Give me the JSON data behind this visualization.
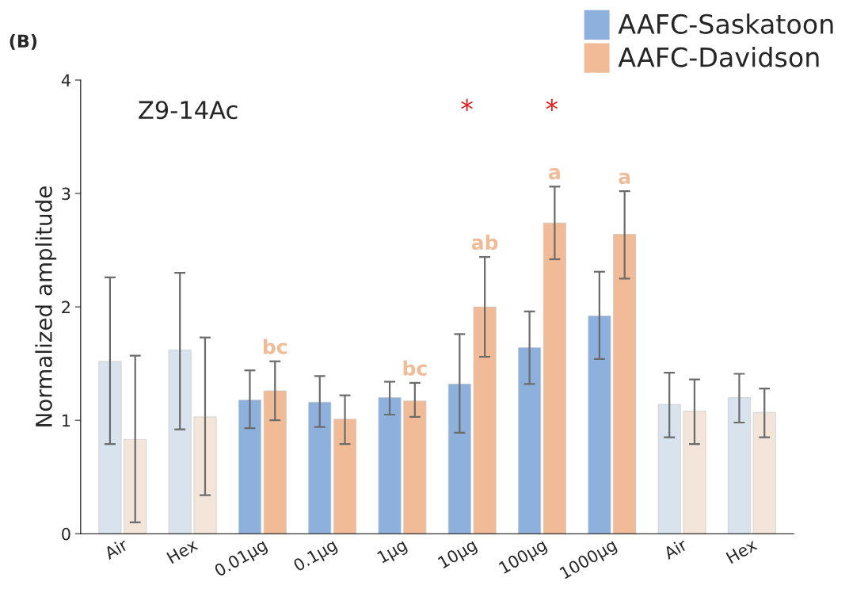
{
  "chart_data": {
    "type": "bar",
    "title": "Z9-14Ac",
    "ylabel": "Normalized amplitude",
    "categories": [
      "Air",
      "Hex",
      "0.01µg",
      "0.1µg",
      "1µg",
      "10µg",
      "100µg",
      "1000µg",
      "Air",
      "Hex"
    ],
    "series": [
      {
        "name": "AAFC-Saskatoon",
        "color": "#8db0dc",
        "colors": [
          "#d9e3ee",
          "#d9e3ee",
          "#8db0dc",
          "#8db0dc",
          "#8db0dc",
          "#8db0dc",
          "#8db0dc",
          "#8db0dc",
          "#d9e3ee",
          "#d9e3ee"
        ],
        "values": [
          1.52,
          1.62,
          1.18,
          1.16,
          1.2,
          1.32,
          1.64,
          1.92,
          1.14,
          1.2
        ],
        "errors": [
          [
            0.79,
            2.26
          ],
          [
            0.92,
            2.3
          ],
          [
            0.93,
            1.44
          ],
          [
            0.94,
            1.39
          ],
          [
            1.05,
            1.34
          ],
          [
            0.89,
            1.76
          ],
          [
            1.32,
            1.96
          ],
          [
            1.54,
            2.31
          ],
          [
            0.85,
            1.42
          ],
          [
            0.98,
            1.41
          ]
        ]
      },
      {
        "name": "AAFC-Davidson",
        "color": "#f0bb96",
        "colors": [
          "#f3e5d9",
          "#f3e5d9",
          "#f0bb96",
          "#f0bb96",
          "#f0bb96",
          "#f0bb96",
          "#f0bb96",
          "#f0bb96",
          "#f3e5d9",
          "#f3e5d9"
        ],
        "values": [
          0.83,
          1.03,
          1.26,
          1.01,
          1.17,
          2.0,
          2.74,
          2.64,
          1.08,
          1.07
        ],
        "value_labels": [
          null,
          null,
          "bc",
          null,
          "bc",
          "ab",
          "a",
          "a",
          null,
          null
        ],
        "errors": [
          [
            0.1,
            1.57
          ],
          [
            0.34,
            1.73
          ],
          [
            1.0,
            1.52
          ],
          [
            0.79,
            1.22
          ],
          [
            1.03,
            1.33
          ],
          [
            1.56,
            2.44
          ],
          [
            2.42,
            3.06
          ],
          [
            2.25,
            3.02
          ],
          [
            0.79,
            1.36
          ],
          [
            0.85,
            1.28
          ]
        ]
      }
    ],
    "ylim": [
      0,
      4
    ],
    "yticks": [
      0,
      1,
      2,
      3,
      4
    ],
    "grid": false,
    "legend": "top right",
    "annotations": [
      "(B)",
      "*",
      "*"
    ]
  }
}
